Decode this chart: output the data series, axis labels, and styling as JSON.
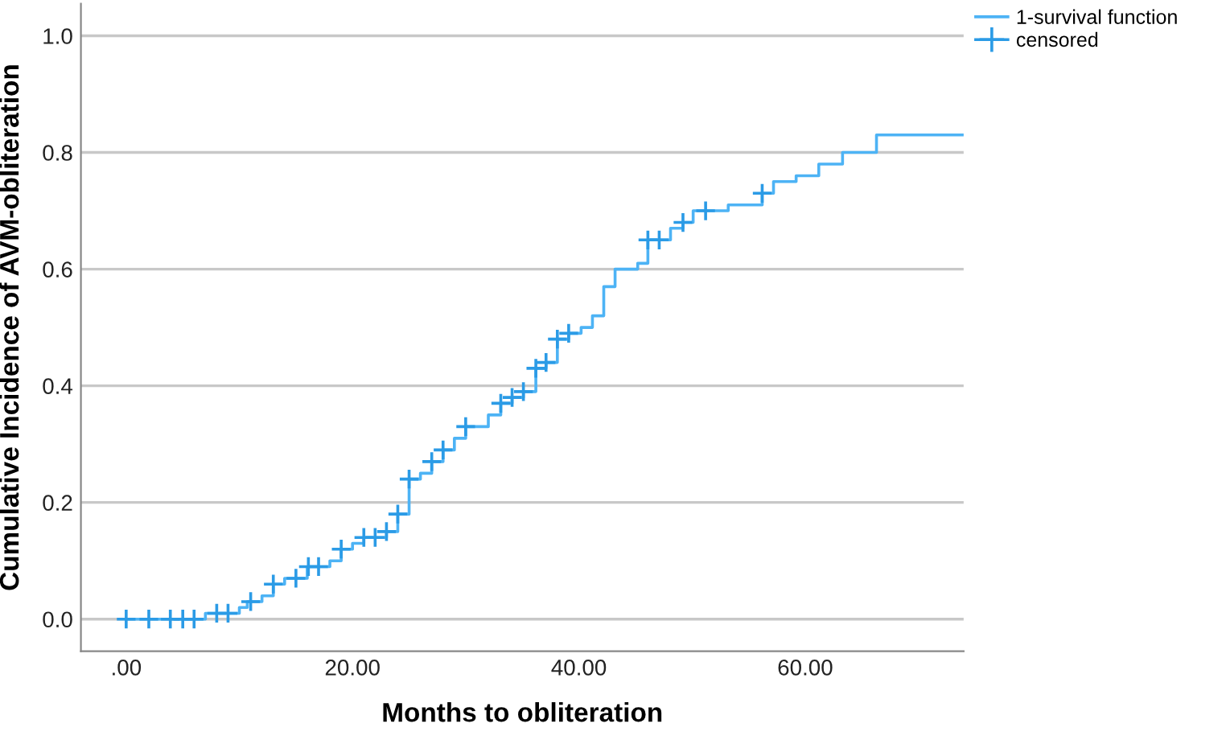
{
  "chart_data": {
    "type": "step",
    "xlabel": "Months to obliteration",
    "ylabel": "Cumulative Incidence of AVM-obliteration",
    "series": [
      {
        "name": "1-survival function",
        "color": "#4db3f5",
        "marker": "none",
        "x": [
          0,
          7.0,
          10.0,
          10.7,
          12.0,
          13.0,
          14.0,
          16.0,
          18.0,
          19.0,
          20.0,
          21.0,
          23.0,
          24.0,
          25.0,
          26.0,
          27.0,
          28.0,
          29.0,
          30.0,
          32.0,
          33.1,
          34.1,
          35.1,
          36.2,
          37.1,
          38.1,
          39.1,
          40.2,
          41.2,
          42.2,
          43.2,
          45.2,
          46.1,
          48.1,
          49.2,
          50.1,
          53.2,
          56.2,
          57.2,
          59.2,
          61.2,
          63.3,
          66.3,
          74
        ],
        "values": [
          0,
          0.01,
          0.02,
          0.03,
          0.04,
          0.06,
          0.07,
          0.09,
          0.1,
          0.12,
          0.13,
          0.14,
          0.15,
          0.18,
          0.24,
          0.25,
          0.27,
          0.29,
          0.31,
          0.33,
          0.35,
          0.37,
          0.38,
          0.39,
          0.43,
          0.44,
          0.48,
          0.49,
          0.5,
          0.52,
          0.57,
          0.6,
          0.61,
          0.65,
          0.67,
          0.68,
          0.7,
          0.71,
          0.73,
          0.75,
          0.76,
          0.78,
          0.8,
          0.83,
          0.83
        ]
      },
      {
        "name": "censored",
        "type": "scatter",
        "color": "#2b9be6",
        "marker": "cross",
        "x": [
          0,
          2.0,
          3.9,
          5.0,
          6.0,
          8.0,
          9.0,
          11.0,
          13.0,
          15.0,
          16.1,
          17.0,
          19.0,
          21.0,
          22.0,
          23.0,
          24.0,
          25.0,
          27.0,
          28.0,
          30.0,
          33.1,
          34.1,
          35.1,
          36.2,
          37.1,
          38.1,
          39.1,
          46.1,
          47.1,
          49.2,
          51.2,
          56.2
        ],
        "values": [
          0,
          0,
          0,
          0,
          0,
          0.01,
          0.01,
          0.03,
          0.06,
          0.07,
          0.09,
          0.09,
          0.12,
          0.14,
          0.14,
          0.15,
          0.18,
          0.24,
          0.27,
          0.29,
          0.33,
          0.37,
          0.38,
          0.39,
          0.43,
          0.44,
          0.48,
          0.49,
          0.65,
          0.65,
          0.68,
          0.7,
          0.73
        ]
      }
    ],
    "xlim": [
      -4,
      74
    ],
    "ylim": [
      -0.055,
      1.055
    ],
    "xticks": [
      {
        "value": 0,
        "label": ".00"
      },
      {
        "value": 20,
        "label": "20.00"
      },
      {
        "value": 40,
        "label": "40.00"
      },
      {
        "value": 60,
        "label": "60.00"
      }
    ],
    "yticks": [
      {
        "value": 0,
        "label": "0.0"
      },
      {
        "value": 0.2,
        "label": "0.2"
      },
      {
        "value": 0.4,
        "label": "0.4"
      },
      {
        "value": 0.6,
        "label": "0.6"
      },
      {
        "value": 0.8,
        "label": "0.8"
      },
      {
        "value": 1.0,
        "label": "1.0"
      }
    ],
    "grid": "y",
    "legend": "top right"
  }
}
